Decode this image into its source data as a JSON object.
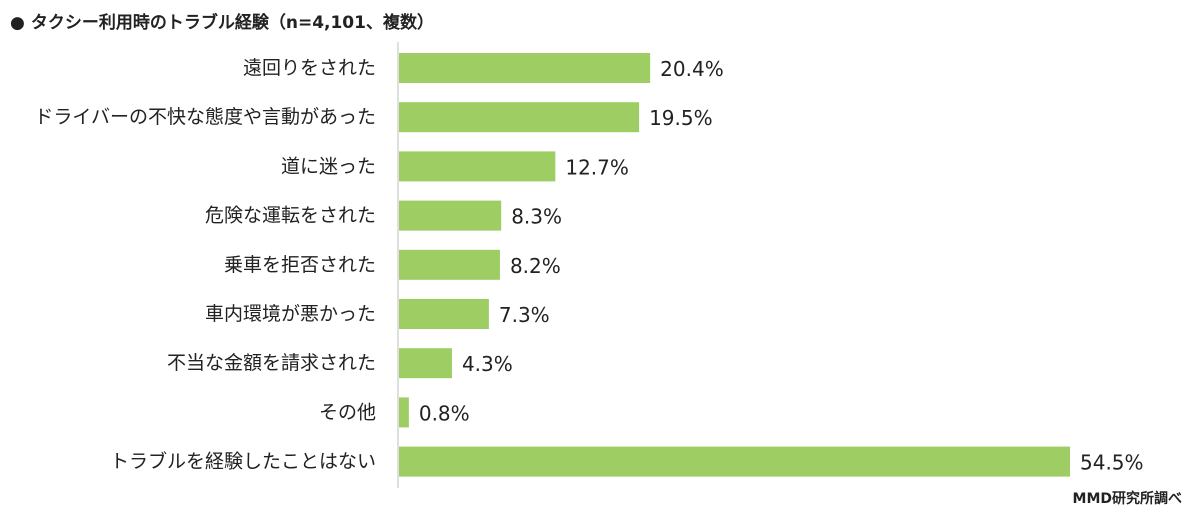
{
  "title": "タクシー利用時のトラブル経験（n=4,101、複数）",
  "bullet": "●",
  "source": "MMD研究所調べ",
  "colors": {
    "bar": "#9dcd63",
    "axis": "#bfbfbf",
    "text": "#222222"
  },
  "chart_data": {
    "type": "bar",
    "orientation": "horizontal",
    "title": "タクシー利用時のトラブル経験（n=4,101、複数）",
    "categories": [
      "遠回りをされた",
      "ドライバーの不快な態度や言動があった",
      "道に迷った",
      "危険な運転をされた",
      "乗車を拒否された",
      "車内環境が悪かった",
      "不当な金額を請求された",
      "その他",
      "トラブルを経験したことはない"
    ],
    "values": [
      20.4,
      19.5,
      12.7,
      8.3,
      8.2,
      7.3,
      4.3,
      0.8,
      54.5
    ],
    "value_labels": [
      "20.4%",
      "19.5%",
      "12.7%",
      "8.3%",
      "8.2%",
      "7.3%",
      "4.3%",
      "0.8%",
      "54.5%"
    ],
    "unit": "%",
    "xlim": [
      0,
      60
    ],
    "grid": false,
    "legend": "none"
  }
}
